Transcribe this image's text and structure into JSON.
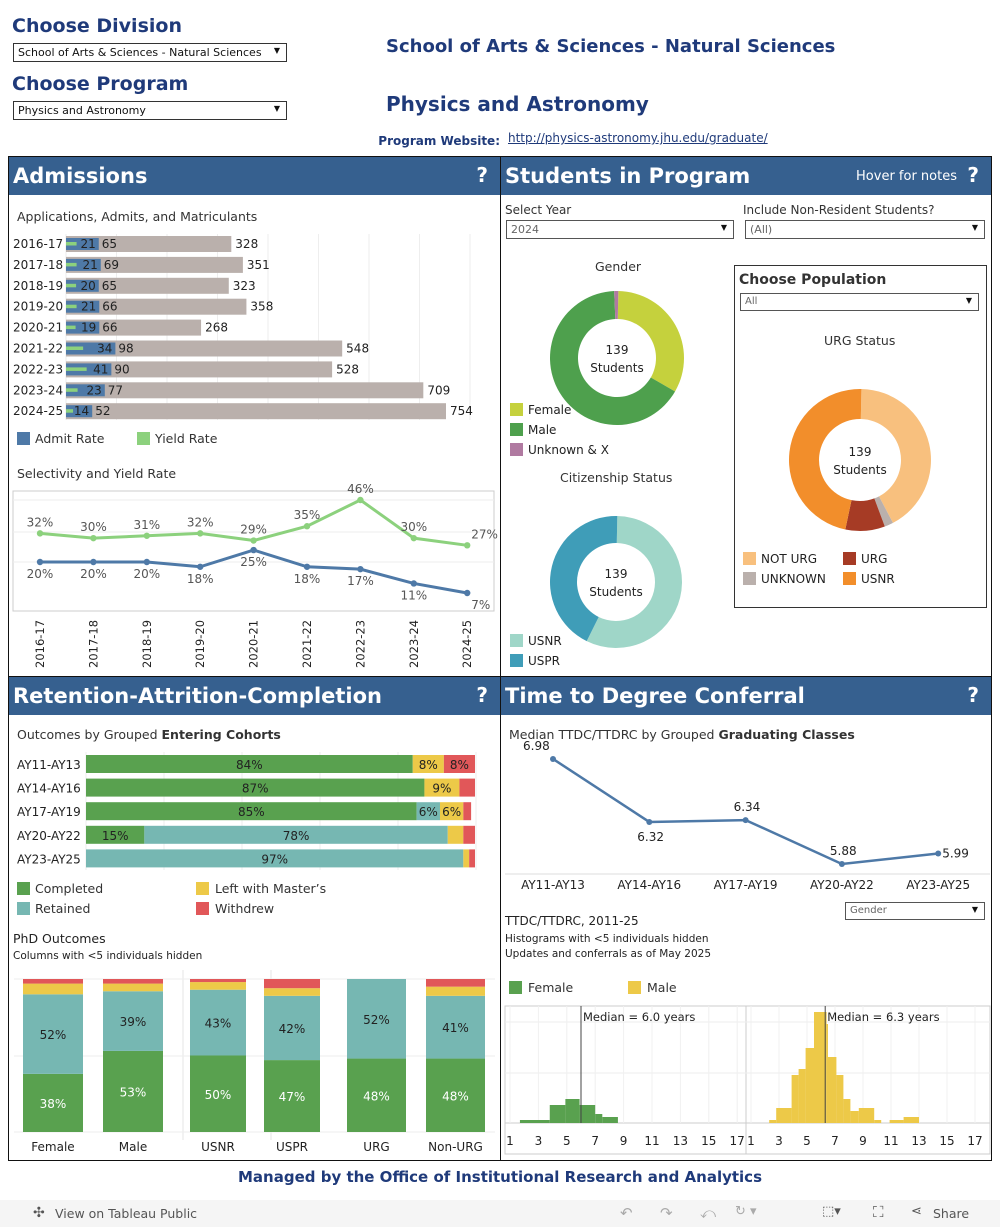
{
  "filters": {
    "division_label": "Choose Division",
    "division_value": "School of Arts & Sciences - Natural Sciences",
    "program_label": "Choose Program",
    "program_value": "Physics and Astronomy"
  },
  "header": {
    "division_title": "School of Arts & Sciences - Natural Sciences",
    "program_title": "Physics and Astronomy",
    "website_label": "Program Website:",
    "website_url": "http://physics-astronomy.jhu.edu/graduate/"
  },
  "colors": {
    "header_bar": "#36608f",
    "title": "#1f3a7a",
    "applications": "#bab0ac",
    "admits": "#4e79a7",
    "matriculants": "#8cd17d",
    "completed": "#59a14f",
    "retained": "#76b7b2",
    "left_masters": "#edc948",
    "withdrew": "#e15759"
  },
  "admissions": {
    "title": "Admissions",
    "help": "?",
    "chart1_title": "Applications, Admits, and Matriculants",
    "legend": [
      {
        "label": "Admit Rate",
        "color": "#4e79a7"
      },
      {
        "label": "Yield Rate",
        "color": "#8cd17d"
      }
    ],
    "chart2_title": "Selectivity and Yield Rate"
  },
  "students": {
    "title": "Students in Program",
    "hover": "Hover for notes",
    "help": "?",
    "year_label": "Select Year",
    "year_value": "2024",
    "nonres_label": "Include Non-Resident Students?",
    "nonres_value": "(All)",
    "gender_title": "Gender",
    "citizenship_title": "Citizenship Status",
    "population_label": "Choose Population",
    "population_value": "All",
    "urg_title": "URG Status",
    "center_count": "139",
    "center_unit": "Students"
  },
  "retention": {
    "title": "Retention-Attrition-Completion",
    "help": "?",
    "chart_title_plain": "Outcomes by Grouped ",
    "chart_title_bold": "Entering Cohorts",
    "legend": [
      {
        "label": "Completed",
        "color": "#59a14f"
      },
      {
        "label": "Left with Master’s",
        "color": "#edc948"
      },
      {
        "label": "Retained",
        "color": "#76b7b2"
      },
      {
        "label": "Withdrew",
        "color": "#e15759"
      }
    ],
    "phd_title": "PhD Outcomes",
    "phd_subtitle": "Columns with <5 individuals hidden"
  },
  "ttd": {
    "title": "Time to Degree Conferral",
    "help": "?",
    "chart_title_plain": "Median TTDC/TTDRC  by Grouped ",
    "chart_title_bold": "Graduating Classes",
    "group_select": "Gender",
    "hist_title": "TTDC/TTDRC, 2011-25",
    "hist_sub1": "Histograms with <5 individuals hidden",
    "hist_sub2": "Updates and conferrals as of May 2025",
    "legend": [
      {
        "label": "Female",
        "color": "#59a14f"
      },
      {
        "label": "Male",
        "color": "#edc948"
      }
    ]
  },
  "footer": {
    "managed_by": "Managed by the Office of Institutional Research and Analytics"
  },
  "toolbar": {
    "view_label": "View on Tableau Public",
    "share_label": "Share"
  },
  "chart_data": [
    {
      "id": "admissions-bars",
      "type": "bar",
      "title": "Applications, Admits, and Matriculants",
      "categories": [
        "2016-17",
        "2017-18",
        "2018-19",
        "2019-20",
        "2020-21",
        "2021-22",
        "2022-23",
        "2023-24",
        "2024-25"
      ],
      "series": [
        {
          "name": "Applications",
          "values": [
            328,
            351,
            323,
            358,
            268,
            548,
            528,
            709,
            754
          ]
        },
        {
          "name": "Admits",
          "values": [
            65,
            69,
            65,
            66,
            66,
            98,
            90,
            77,
            52
          ]
        },
        {
          "name": "Matriculants",
          "values": [
            21,
            21,
            20,
            21,
            19,
            34,
            41,
            23,
            14
          ]
        }
      ]
    },
    {
      "id": "selectivity-yield",
      "type": "line",
      "title": "Selectivity and Yield Rate",
      "categories": [
        "2016-17",
        "2017-18",
        "2018-19",
        "2019-20",
        "2020-21",
        "2021-22",
        "2022-23",
        "2023-24",
        "2024-25"
      ],
      "series": [
        {
          "name": "Yield Rate",
          "color": "#8cd17d",
          "values": [
            32,
            30,
            31,
            32,
            29,
            35,
            46,
            30,
            27
          ]
        },
        {
          "name": "Admit Rate",
          "color": "#4e79a7",
          "values": [
            20,
            20,
            20,
            18,
            25,
            18,
            17,
            11,
            7
          ]
        }
      ],
      "unit": "%"
    },
    {
      "id": "gender",
      "type": "pie",
      "title": "Gender",
      "total": 139,
      "slices": [
        {
          "label": "Female",
          "value": 33,
          "color": "#c5d13d"
        },
        {
          "label": "Male",
          "value": 66,
          "color": "#4ea04d"
        },
        {
          "label": "Unknown & X",
          "value": 1,
          "color": "#b07aa1"
        }
      ]
    },
    {
      "id": "citizenship",
      "type": "pie",
      "title": "Citizenship Status",
      "total": 139,
      "slices": [
        {
          "label": "USNR",
          "value": 57,
          "color": "#9fd6c8"
        },
        {
          "label": "USPR",
          "value": 43,
          "color": "#3f9db8"
        }
      ]
    },
    {
      "id": "urg",
      "type": "pie",
      "title": "URG Status",
      "total": 139,
      "slices": [
        {
          "label": "NOT URG",
          "value": 42,
          "color": "#f8c07e"
        },
        {
          "label": "UNKNOWN",
          "value": 2,
          "color": "#bab0ac"
        },
        {
          "label": "URG",
          "value": 9,
          "color": "#a63b25"
        },
        {
          "label": "USNR",
          "value": 47,
          "color": "#f28e2b"
        }
      ]
    },
    {
      "id": "cohort-outcomes",
      "type": "bar",
      "stacked": true,
      "categories": [
        "AY11-AY13",
        "AY14-AY16",
        "AY17-AY19",
        "AY20-AY22",
        "AY23-AY25"
      ],
      "series": [
        {
          "name": "Completed",
          "values": [
            84,
            87,
            85,
            15,
            0
          ]
        },
        {
          "name": "Retained",
          "values": [
            0,
            0,
            6,
            78,
            97
          ]
        },
        {
          "name": "Left with Master’s",
          "values": [
            8,
            9,
            6,
            4,
            1.5
          ]
        },
        {
          "name": "Withdrew",
          "values": [
            8,
            4,
            2,
            3,
            1.5
          ]
        }
      ],
      "labels_min": 5
    },
    {
      "id": "phd-outcomes",
      "type": "bar",
      "stacked": true,
      "categories": [
        "Female",
        "Male",
        "USNR",
        "USPR",
        "URG",
        "Non-URG"
      ],
      "series": [
        {
          "name": "Completed",
          "values": [
            38,
            53,
            50,
            47,
            48,
            48
          ]
        },
        {
          "name": "Retained",
          "values": [
            52,
            39,
            43,
            42,
            52,
            41
          ]
        },
        {
          "name": "Left with Master’s",
          "values": [
            7,
            5,
            5,
            5,
            0,
            6
          ]
        },
        {
          "name": "Withdrew",
          "values": [
            3,
            3,
            2,
            6,
            0,
            5
          ]
        }
      ]
    },
    {
      "id": "median-ttd",
      "type": "line",
      "categories": [
        "AY11-AY13",
        "AY14-AY16",
        "AY17-AY19",
        "AY20-AY22",
        "AY23-AY25"
      ],
      "values": [
        6.98,
        6.32,
        6.34,
        5.88,
        5.99
      ]
    },
    {
      "id": "ttd-histogram",
      "type": "bar",
      "xticks": [
        1,
        3,
        5,
        7,
        9,
        11,
        13,
        15,
        17
      ],
      "panels": [
        {
          "name": "Female",
          "color": "#59a14f",
          "median_label": "Median = 6.0 years",
          "median": 6.0,
          "bins": [
            [
              1.7,
              3.8,
              1
            ],
            [
              3.8,
              4.9,
              6
            ],
            [
              4.9,
              5.9,
              8
            ],
            [
              5.9,
              7.0,
              6
            ],
            [
              7.0,
              7.5,
              3
            ],
            [
              7.5,
              8.6,
              2
            ]
          ]
        },
        {
          "name": "Male",
          "color": "#edc948",
          "median_label": "Median = 6.3 years",
          "median": 6.3,
          "bins": [
            [
              2.3,
              2.8,
              1
            ],
            [
              2.8,
              3.9,
              5
            ],
            [
              3.9,
              4.4,
              16
            ],
            [
              4.4,
              4.9,
              18
            ],
            [
              4.9,
              5.5,
              25
            ],
            [
              5.5,
              6.4,
              37
            ],
            [
              6.4,
              6.5,
              33
            ],
            [
              6.5,
              7.1,
              22
            ],
            [
              7.1,
              7.6,
              16
            ],
            [
              7.6,
              8.1,
              8
            ],
            [
              8.1,
              8.7,
              4
            ],
            [
              8.7,
              9.8,
              5
            ],
            [
              9.8,
              10.3,
              1
            ],
            [
              10.9,
              11.9,
              1
            ],
            [
              11.9,
              13.0,
              2
            ]
          ]
        }
      ]
    }
  ]
}
